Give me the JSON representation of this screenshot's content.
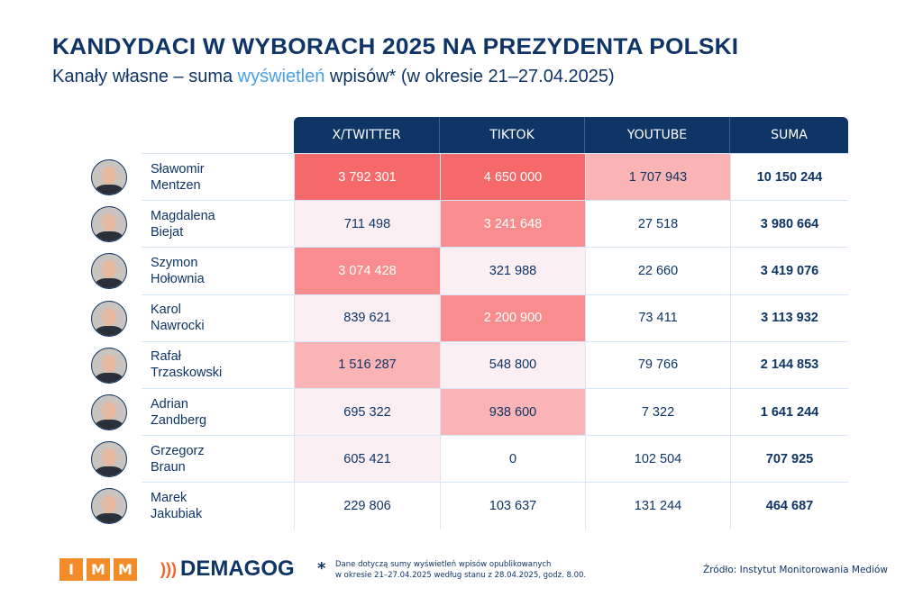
{
  "title": "KANDYDACI W WYBORACH 2025 NA PREZYDENTA POLSKI",
  "subtitle": {
    "before": "Kanały własne – suma ",
    "highlight": "wyświetleń",
    "after": " wpisów* (w okresie 21–27.04.2025)"
  },
  "colors": {
    "primary": "#0E3566",
    "highlight": "#4A9FE8",
    "heat": [
      "#FBEFF3",
      "#FBB4B6",
      "#F88C8E",
      "#F6696B"
    ]
  },
  "table": {
    "headers": [
      "X/TWITTER",
      "TIKTOK",
      "YOUTUBE",
      "SUMA"
    ],
    "rows": [
      {
        "first": "Sławomir",
        "last": "Mentzen",
        "twitter": "3 792 301",
        "tiktok": "4 650 000",
        "youtube": "1 707 943",
        "sum": "10 150 244"
      },
      {
        "first": "Magdalena",
        "last": "Biejat",
        "twitter": "711 498",
        "tiktok": "3 241 648",
        "youtube": "27 518",
        "sum": "3 980 664"
      },
      {
        "first": "Szymon",
        "last": "Hołownia",
        "twitter": "3 074 428",
        "tiktok": "321 988",
        "youtube": "22 660",
        "sum": "3 419 076"
      },
      {
        "first": "Karol",
        "last": "Nawrocki",
        "twitter": "839 621",
        "tiktok": "2 200 900",
        "youtube": "73 411",
        "sum": "3 113 932"
      },
      {
        "first": "Rafał",
        "last": "Trzaskowski",
        "twitter": "1 516 287",
        "tiktok": "548 800",
        "youtube": "79 766",
        "sum": "2 144 853"
      },
      {
        "first": "Adrian",
        "last": "Zandberg",
        "twitter": "695 322",
        "tiktok": "938 600",
        "youtube": "7 322",
        "sum": "1 641 244"
      },
      {
        "first": "Grzegorz",
        "last": "Braun",
        "twitter": "605 421",
        "tiktok": "0",
        "youtube": "102 504",
        "sum": "707 925"
      },
      {
        "first": "Marek",
        "last": "Jakubiak",
        "twitter": "229 806",
        "tiktok": "103 637",
        "youtube": "131 244",
        "sum": "464 687"
      }
    ]
  },
  "footer": {
    "imm_letters": [
      "I",
      "M",
      "M"
    ],
    "demagog": "DEMAGOG",
    "note_star": "*",
    "note_line1": "Dane dotyczą sumy wyświetleń wpisów opublikowanych",
    "note_line2": "w okresie 21–27.04.2025 według stanu z 28.04.2025, godz. 8.00.",
    "source": "Źródło: Instytut Monitorowania Mediów"
  }
}
